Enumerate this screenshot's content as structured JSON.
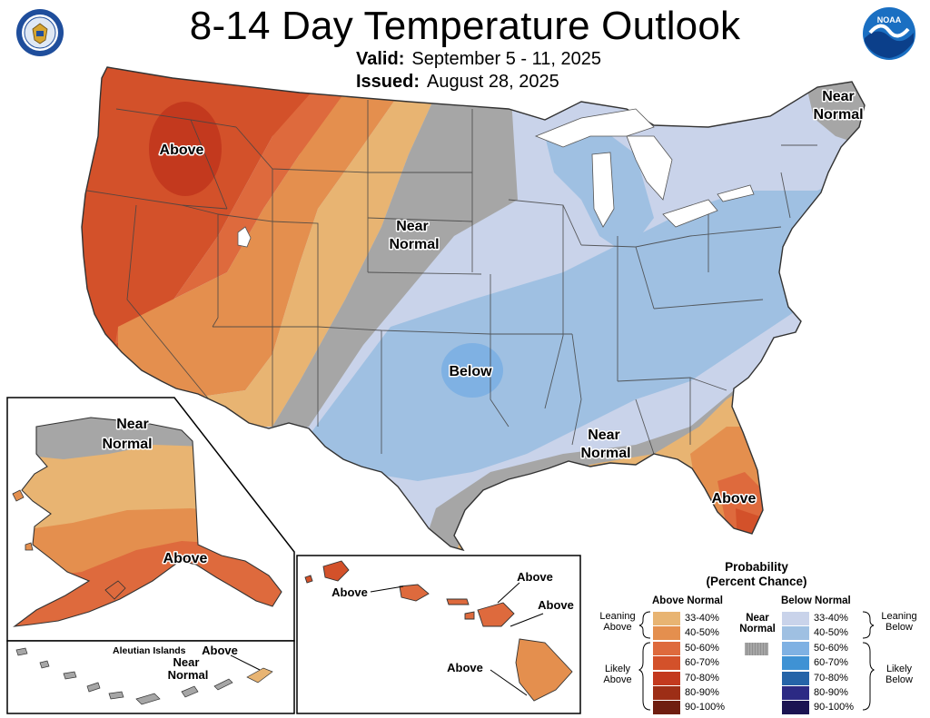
{
  "header": {
    "title": "8-14 Day Temperature Outlook",
    "valid_label": "Valid:",
    "valid_value": "September 5 - 11, 2025",
    "issued_label": "Issued:",
    "issued_value": "August 28, 2025"
  },
  "logos": {
    "left": "department-of-commerce-seal",
    "right": "noaa-logo",
    "noaa_text": "NOAA"
  },
  "map_labels": {
    "conus_above": "Above",
    "conus_near_normal_ne": "Near Normal",
    "conus_near_normal_plains": "Near Normal",
    "conus_below": "Below",
    "conus_near_normal_gulf": "Near Normal",
    "conus_above_florida": "Above",
    "alaska_near_normal": "Near Normal",
    "alaska_above": "Above",
    "aleutian_title": "Aleutian Islands",
    "aleutian_near_normal": "Near Normal",
    "aleutian_above": "Above",
    "hawaii_above_kauai": "Above",
    "hawaii_above_maui": "Above",
    "hawaii_above_east": "Above",
    "hawaii_above_big": "Above"
  },
  "legend": {
    "title_line1": "Probability",
    "title_line2": "(Percent Chance)",
    "above_header": "Above Normal",
    "below_header": "Below Normal",
    "near_normal_line1": "Near",
    "near_normal_line2": "Normal",
    "leaning_above_1": "Leaning",
    "leaning_above_2": "Above",
    "likely_above_1": "Likely",
    "likely_above_2": "Above",
    "leaning_below_1": "Leaning",
    "leaning_below_2": "Below",
    "likely_below_1": "Likely",
    "likely_below_2": "Below",
    "above_scale": [
      {
        "label": "33-40%",
        "color": "#e8b472"
      },
      {
        "label": "40-50%",
        "color": "#e48f4e"
      },
      {
        "label": "50-60%",
        "color": "#de6a3d"
      },
      {
        "label": "60-70%",
        "color": "#d3512a"
      },
      {
        "label": "70-80%",
        "color": "#c3391e"
      },
      {
        "label": "80-90%",
        "color": "#9d2e16"
      },
      {
        "label": "90-100%",
        "color": "#6f1e10"
      }
    ],
    "below_scale": [
      {
        "label": "33-40%",
        "color": "#c9d3ea"
      },
      {
        "label": "40-50%",
        "color": "#9fc0e2"
      },
      {
        "label": "50-60%",
        "color": "#7fb1e3"
      },
      {
        "label": "60-70%",
        "color": "#3f92d4"
      },
      {
        "label": "70-80%",
        "color": "#2564a8"
      },
      {
        "label": "80-90%",
        "color": "#2c2a84"
      },
      {
        "label": "90-100%",
        "color": "#1c1452"
      }
    ],
    "near_color": "#a6a6a6"
  }
}
